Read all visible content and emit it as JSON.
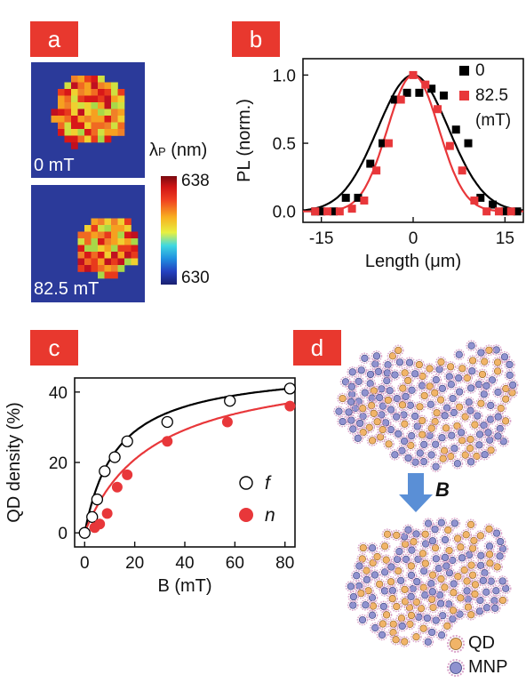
{
  "panels": {
    "a": {
      "label": "a"
    },
    "b": {
      "label": "b"
    },
    "c": {
      "label": "c"
    },
    "d": {
      "label": "d"
    }
  },
  "panel_a": {
    "map_top_label": "0 mT",
    "map_bottom_label": "82.5 mT",
    "colorbar_title_symbol": "λ",
    "colorbar_title_sub": "P",
    "colorbar_title_unit": " (nm)",
    "colorbar_max": "638",
    "colorbar_min": "630",
    "colors": {
      "background": "#2b3a9a",
      "high": "#c0102a",
      "low": "#2030a0"
    }
  },
  "panel_d": {
    "arrow_label": "B",
    "legend_qd": "QD",
    "legend_mnp": "MNP",
    "colors": {
      "qd": "#f1b468",
      "mnp": "#8f92cf",
      "arrow": "#5a8fd6"
    }
  },
  "chart_data": [
    {
      "type": "scatter",
      "panel": "b",
      "xlabel": "Length (μm)",
      "ylabel": "PL (norm.)",
      "xlim": [
        -18,
        18
      ],
      "ylim": [
        -0.08,
        1.12
      ],
      "xticks": [
        -15,
        0,
        15
      ],
      "xtick_labels": [
        "-15",
        "0",
        "15"
      ],
      "yticks": [
        0.0,
        0.5,
        1.0
      ],
      "ytick_labels": [
        "0.0",
        "0.5",
        "1.0"
      ],
      "legend_title": "(mT)",
      "legend_placement": "top-right",
      "series": [
        {
          "name": "0",
          "color": "#000000",
          "marker": "square",
          "x": [
            -16,
            -15,
            -13,
            -11,
            -9,
            -7,
            -5,
            -3,
            -1,
            1,
            3,
            5,
            7,
            9,
            11,
            13,
            15,
            17
          ],
          "y": [
            0.0,
            0.0,
            0.0,
            0.1,
            0.1,
            0.35,
            0.5,
            0.82,
            0.87,
            0.87,
            0.9,
            0.85,
            0.6,
            0.5,
            0.1,
            0.05,
            0.0,
            0.0
          ],
          "fit": {
            "type": "gaussian",
            "center": 0,
            "sigma": 5.8,
            "amplitude": 1.0
          }
        },
        {
          "name": "82.5",
          "color": "#e8373a",
          "marker": "square",
          "x": [
            -16,
            -14,
            -12,
            -10,
            -8,
            -6,
            -4,
            -2,
            0,
            2,
            4,
            6,
            8,
            10,
            12,
            14,
            16
          ],
          "y": [
            0.0,
            0.0,
            0.0,
            0.02,
            0.08,
            0.3,
            0.5,
            0.82,
            1.0,
            0.93,
            0.75,
            0.48,
            0.3,
            0.08,
            0.0,
            0.0,
            0.0
          ],
          "fit": {
            "type": "gaussian",
            "center": 0,
            "sigma": 4.2,
            "amplitude": 1.0
          }
        }
      ]
    },
    {
      "type": "scatter",
      "panel": "c",
      "xlabel": "B (mT)",
      "ylabel": "QD density (%)",
      "xlim": [
        -4,
        84
      ],
      "ylim": [
        -4,
        44
      ],
      "xticks": [
        0,
        20,
        40,
        60,
        80
      ],
      "xtick_labels": [
        "0",
        "20",
        "40",
        "60",
        "80"
      ],
      "yticks": [
        0,
        20,
        40
      ],
      "ytick_labels": [
        "0",
        "20",
        "40"
      ],
      "legend_placement": "right",
      "series": [
        {
          "name": "f",
          "color": "#000000",
          "marker": "open-circle",
          "x": [
            0,
            3,
            5,
            8,
            12,
            17,
            33,
            58,
            82
          ],
          "y": [
            0,
            4.5,
            9.5,
            17.5,
            21.5,
            26,
            31.5,
            37.5,
            41
          ],
          "fit": {
            "type": "saturation",
            "max": 47.5,
            "k": 13
          }
        },
        {
          "name": "n",
          "color": "#e8373a",
          "marker": "filled-circle",
          "x": [
            4,
            6,
            9,
            13,
            17,
            33,
            57,
            82
          ],
          "y": [
            1.5,
            2.5,
            5.5,
            13,
            16.5,
            26,
            31.5,
            36
          ],
          "fit": {
            "type": "saturation",
            "max": 49,
            "k": 27
          }
        }
      ]
    }
  ]
}
